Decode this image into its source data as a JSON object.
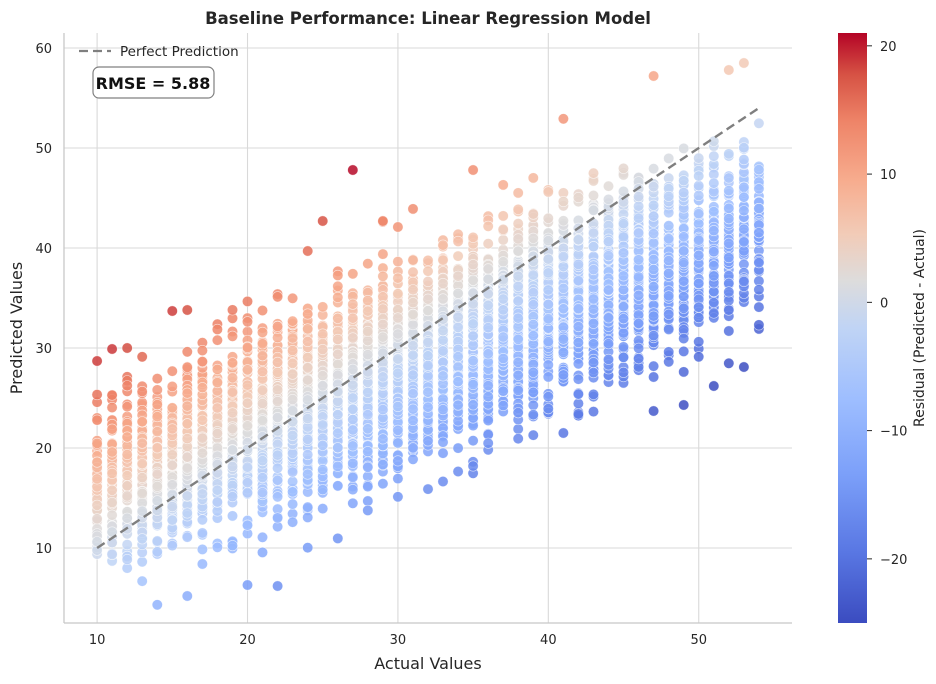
{
  "chart_data": {
    "type": "scatter",
    "title": "Baseline Performance: Linear Regression Model",
    "xlabel": "Actual Values",
    "ylabel": "Predicted Values",
    "xlim": [
      7.8,
      56.2
    ],
    "ylim": [
      2.5,
      61.5
    ],
    "xticks": [
      "10",
      "20",
      "30",
      "40",
      "50"
    ],
    "yticks": [
      "10",
      "20",
      "30",
      "40",
      "50",
      "60"
    ],
    "grid": true,
    "legend": {
      "placement": "top-left",
      "entries": [
        "Perfect Prediction"
      ]
    },
    "reference_line": {
      "name": "Perfect Prediction",
      "x": [
        10,
        54
      ],
      "y": [
        10,
        54
      ],
      "color": "#7f7f7f",
      "style": "dashed"
    },
    "annotation": "RMSE = 5.88",
    "colorbar": {
      "label": "Residual (Predicted - Actual)",
      "range": [
        -25,
        21
      ],
      "ticks": [
        "20",
        "10",
        "0",
        "−10",
        "−20"
      ],
      "colormap": "coolwarm"
    },
    "point_model": {
      "x_range": [
        10,
        54
      ],
      "intercept": 9.9,
      "slope": 0.6,
      "note_count": 6000
    },
    "highlight_points": [
      {
        "x": 27,
        "y": 47.8
      },
      {
        "x": 35,
        "y": 47.8
      },
      {
        "x": 47,
        "y": 57.2
      },
      {
        "x": 52,
        "y": 57.8
      },
      {
        "x": 53,
        "y": 58.5
      },
      {
        "x": 15,
        "y": 33.7
      },
      {
        "x": 16,
        "y": 33.8
      },
      {
        "x": 24,
        "y": 39.7
      },
      {
        "x": 25,
        "y": 42.7
      },
      {
        "x": 29,
        "y": 42.7
      },
      {
        "x": 16,
        "y": 5.2
      },
      {
        "x": 22,
        "y": 6.2
      },
      {
        "x": 20,
        "y": 6.3
      },
      {
        "x": 35,
        "y": 18.2
      },
      {
        "x": 47,
        "y": 23.7
      },
      {
        "x": 49,
        "y": 24.3
      },
      {
        "x": 51,
        "y": 26.2
      },
      {
        "x": 53,
        "y": 28.1
      },
      {
        "x": 42,
        "y": 23.4
      },
      {
        "x": 11,
        "y": 29.9
      },
      {
        "x": 12,
        "y": 30.0
      }
    ],
    "colors": {
      "grid": "#d9d9d9",
      "axis": "#c8c8c8",
      "line": "#7f7f7f"
    }
  }
}
